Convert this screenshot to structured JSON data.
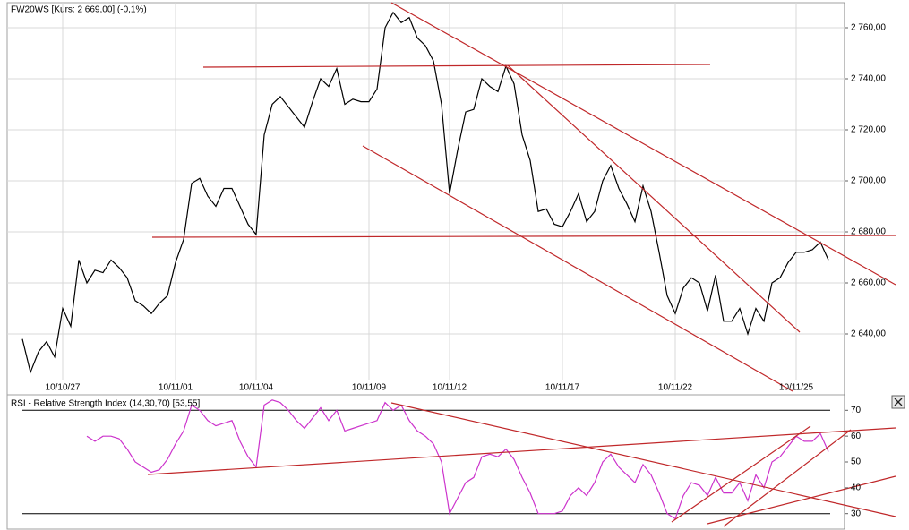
{
  "chart_data": [
    {
      "type": "line",
      "title": "FW20WS [Kurs: 2 669,00] (-0,1%)",
      "color": "#000000",
      "grid": true,
      "categories": [
        null,
        null,
        null,
        null,
        null,
        "10/10/27",
        null,
        null,
        null,
        null,
        null,
        null,
        null,
        null,
        null,
        null,
        null,
        null,
        null,
        "10/11/01",
        null,
        null,
        null,
        null,
        null,
        null,
        null,
        null,
        null,
        "10/11/04",
        null,
        null,
        null,
        null,
        null,
        null,
        null,
        null,
        null,
        null,
        null,
        null,
        null,
        "10/11/09",
        null,
        null,
        null,
        null,
        null,
        null,
        null,
        null,
        null,
        "10/11/12",
        null,
        null,
        null,
        null,
        null,
        null,
        null,
        null,
        null,
        null,
        null,
        null,
        null,
        "10/11/17",
        null,
        null,
        null,
        null,
        null,
        null,
        null,
        null,
        null,
        null,
        null,
        null,
        null,
        "10/11/22",
        null,
        null,
        null,
        null,
        null,
        null,
        null,
        null,
        null,
        null,
        null,
        null,
        null,
        null,
        "10/11/25",
        null,
        null,
        null,
        null
      ],
      "values": [
        2638,
        2625,
        2633,
        2637,
        2631,
        2650,
        2643,
        2669,
        2660,
        2665,
        2664,
        2669,
        2666,
        2662,
        2653,
        2651,
        2648,
        2652,
        2655,
        2668,
        2677,
        2699,
        2701,
        2694,
        2690,
        2697,
        2697,
        2690,
        2683,
        2679,
        2718,
        2730,
        2733,
        2729,
        2725,
        2721,
        2731,
        2740,
        2737,
        2744,
        2730,
        2732,
        2731,
        2731,
        2736,
        2760,
        2766,
        2762,
        2764,
        2756,
        2753,
        2747,
        2730,
        2695,
        2712,
        2727,
        2728,
        2740,
        2737,
        2735,
        2745,
        2738,
        2718,
        2708,
        2688,
        2689,
        2683,
        2682,
        2688,
        2695,
        2684,
        2688,
        2700,
        2706,
        2697,
        2691,
        2684,
        2698,
        2688,
        2672,
        2655,
        2648,
        2658,
        2662,
        2660,
        2649,
        2663,
        2645,
        2645,
        2650,
        2640,
        2650,
        2645,
        2660,
        2662,
        2668,
        2672,
        2672,
        2673,
        2676,
        2669
      ],
      "ylim": [
        2622,
        2770
      ],
      "yticks": [
        {
          "value": 2640,
          "label": "2 640,00"
        },
        {
          "value": 2660,
          "label": "2 660,00"
        },
        {
          "value": 2680,
          "label": "2 680,00"
        },
        {
          "value": 2700,
          "label": "2 700,00"
        },
        {
          "value": 2720,
          "label": "2 720,00"
        },
        {
          "value": 2740,
          "label": "2 740,00"
        },
        {
          "value": 2760,
          "label": "2 760,00"
        }
      ]
    },
    {
      "type": "line",
      "title": "RSI - Relative Strength Index (14,30,70) [53,55]",
      "color": "#cc33cc",
      "grid": false,
      "values": [
        null,
        null,
        null,
        null,
        null,
        null,
        null,
        null,
        60,
        58,
        60,
        60,
        59,
        55,
        50,
        48,
        46,
        47,
        51,
        57,
        62,
        72,
        70,
        66,
        64,
        65,
        66,
        58,
        52,
        48,
        72,
        74,
        73,
        70,
        66,
        63,
        67,
        71,
        66,
        70,
        62,
        63,
        64,
        65,
        66,
        73,
        70,
        72,
        66,
        62,
        60,
        57,
        50,
        30,
        36,
        42,
        44,
        52,
        53,
        52,
        55,
        51,
        44,
        38,
        30,
        30,
        30,
        31,
        37,
        40,
        37,
        42,
        50,
        53,
        48,
        45,
        42,
        49,
        45,
        38,
        30,
        28,
        37,
        42,
        41,
        37,
        44,
        38,
        38,
        42,
        35,
        45,
        40,
        50,
        52,
        56,
        60,
        58,
        58,
        61,
        54
      ],
      "ylim": [
        24,
        76
      ],
      "yticks": [
        30,
        40,
        50,
        60,
        70
      ],
      "levels": [
        70,
        30
      ]
    }
  ]
}
